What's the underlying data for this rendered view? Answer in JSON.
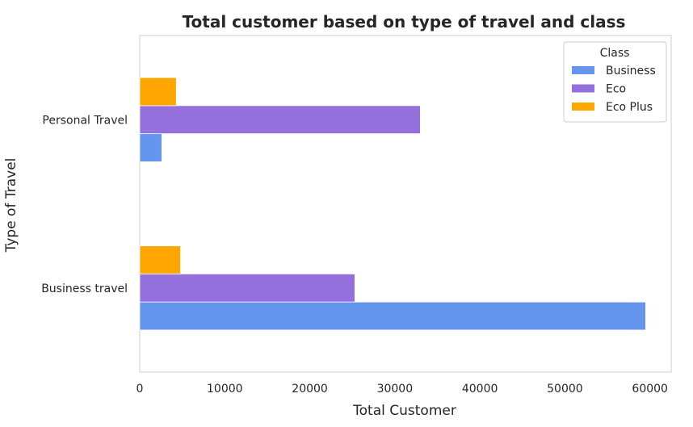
{
  "chart_data": {
    "type": "bar",
    "orientation": "horizontal",
    "title": "Total customer based on type of travel and class",
    "xlabel": "Total Customer",
    "ylabel": "Type of Travel",
    "categories": [
      "Business travel",
      "Personal Travel"
    ],
    "series": [
      {
        "name": "Business",
        "values": [
          59500,
          2600
        ],
        "color": "#6495ED"
      },
      {
        "name": "Eco",
        "values": [
          25300,
          33000
        ],
        "color": "#9370DB"
      },
      {
        "name": "Eco Plus",
        "values": [
          4800,
          4300
        ],
        "color": "#FFA500"
      }
    ],
    "xlim": [
      0,
      62500
    ],
    "xticks": [
      0,
      10000,
      20000,
      30000,
      40000,
      50000,
      60000
    ],
    "xtick_labels": [
      "0",
      "10000",
      "20000",
      "30000",
      "40000",
      "50000",
      "60000"
    ],
    "grid": false,
    "legend": {
      "title": "Class",
      "placement": "top-right"
    }
  }
}
